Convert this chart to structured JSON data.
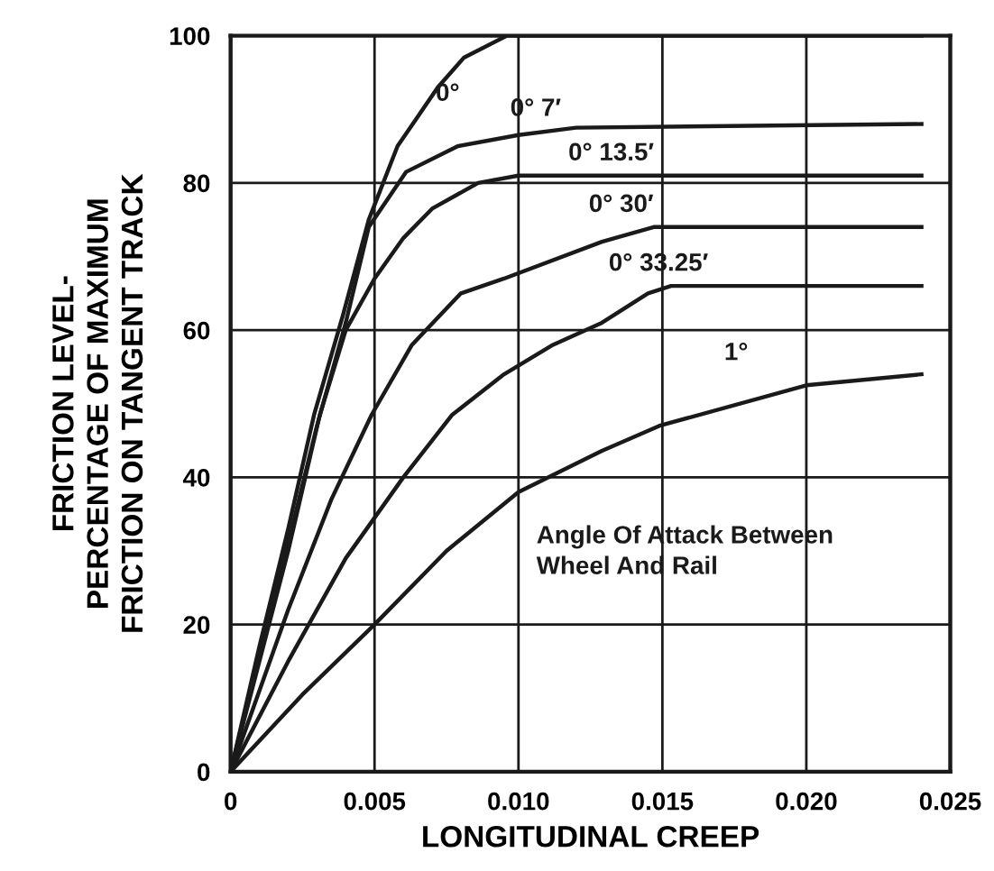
{
  "chart_data": {
    "type": "line",
    "xlabel": "LONGITUDINAL CREEP",
    "ylabel": "FRICTION LEVEL-\nPERCENTAGE OF MAXIMUM\nFRICTION ON TANGENT TRACK",
    "xlim": [
      0,
      0.025
    ],
    "xticks": [
      {
        "value": 0,
        "label": "0"
      },
      {
        "value": 0.005,
        "label": "0.005"
      },
      {
        "value": 0.01,
        "label": "0.010"
      },
      {
        "value": 0.015,
        "label": "0.015"
      },
      {
        "value": 0.02,
        "label": "0.020"
      },
      {
        "value": 0.025,
        "label": "0.025"
      }
    ],
    "ylim": [
      0,
      100
    ],
    "yticks": [
      0,
      20,
      40,
      60,
      80,
      100
    ],
    "grid": true,
    "legend": false,
    "marker": "none",
    "line_style": "solid",
    "annotations": [
      "Angle Of Attack Between\nWheel And Rail"
    ],
    "series": [
      {
        "name": "0°",
        "color": "#1a1a1a",
        "x": [
          0,
          0.001,
          0.002,
          0.0029,
          0.0039,
          0.0048,
          0.0058,
          0.0065,
          0.0072,
          0.0081,
          0.0096,
          0.024
        ],
        "values": [
          0,
          17,
          33,
          48.5,
          62,
          75,
          85,
          89,
          93,
          97,
          100,
          100
        ]
      },
      {
        "name": "0° 7′",
        "color": "#1a1a1a",
        "x": [
          0,
          0.001,
          0.002,
          0.003,
          0.004,
          0.0048,
          0.0061,
          0.0079,
          0.01,
          0.012,
          0.024
        ],
        "values": [
          0,
          16,
          31,
          47,
          61,
          74,
          81.5,
          85,
          86.5,
          87.5,
          88
        ]
      },
      {
        "name": "0° 13.5′",
        "color": "#1a1a1a",
        "x": [
          0,
          0.001,
          0.002,
          0.0031,
          0.004,
          0.005,
          0.006,
          0.007,
          0.0086,
          0.01,
          0.024
        ],
        "values": [
          0,
          15,
          30,
          48.5,
          60,
          67,
          72.5,
          76.5,
          80,
          81,
          81
        ]
      },
      {
        "name": "0° 30′",
        "color": "#1a1a1a",
        "x": [
          0,
          0.002,
          0.0035,
          0.0049,
          0.0063,
          0.008,
          0.0095,
          0.0129,
          0.0147,
          0.024
        ],
        "values": [
          0,
          22,
          37,
          48.5,
          58,
          65,
          67,
          72,
          74,
          74
        ]
      },
      {
        "name": "0° 33.25′",
        "color": "#1a1a1a",
        "x": [
          0,
          0.002,
          0.004,
          0.006,
          0.0077,
          0.0095,
          0.0112,
          0.0129,
          0.0145,
          0.0153,
          0.024
        ],
        "values": [
          0,
          15,
          29,
          40,
          48.5,
          54,
          58,
          61,
          65,
          66,
          66
        ]
      },
      {
        "name": "1°",
        "color": "#1a1a1a",
        "x": [
          0,
          0.0025,
          0.005,
          0.0075,
          0.01,
          0.0129,
          0.0149,
          0.02,
          0.024
        ],
        "values": [
          0,
          10.5,
          20,
          30,
          38,
          43.6,
          47,
          52.5,
          54
        ]
      }
    ]
  }
}
